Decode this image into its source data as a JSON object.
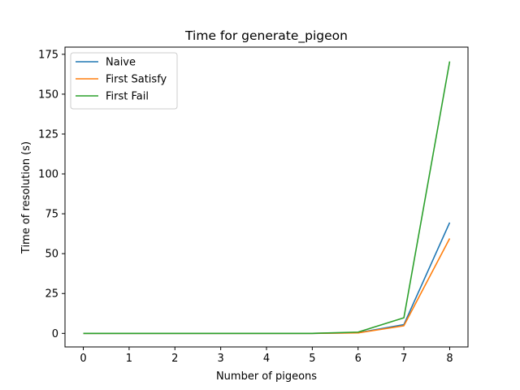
{
  "chart_data": {
    "type": "line",
    "title": "Time for generate_pigeon",
    "xlabel": "Number of pigeons",
    "ylabel": "Time of resolution (s)",
    "x": [
      0,
      1,
      2,
      3,
      4,
      5,
      6,
      7,
      8
    ],
    "xlim": [
      -0.4,
      8.4
    ],
    "ylim": [
      -8.5,
      179.5
    ],
    "xticks": [
      0,
      1,
      2,
      3,
      4,
      5,
      6,
      7,
      8
    ],
    "yticks": [
      0,
      25,
      50,
      75,
      100,
      125,
      150,
      175
    ],
    "grid": false,
    "legend_position": "upper-left",
    "series": [
      {
        "name": "Naive",
        "color": "#1f77b4",
        "values": [
          0,
          0,
          0,
          0,
          0,
          0,
          0.4,
          5.5,
          69.5
        ]
      },
      {
        "name": "First Satisfy",
        "color": "#ff7f0e",
        "values": [
          0,
          0,
          0,
          0,
          0,
          0,
          0.3,
          4.8,
          59.5
        ]
      },
      {
        "name": "First Fail",
        "color": "#2ca02c",
        "values": [
          0,
          0,
          0,
          0,
          0,
          0,
          0.8,
          9.8,
          170.5
        ]
      }
    ]
  }
}
